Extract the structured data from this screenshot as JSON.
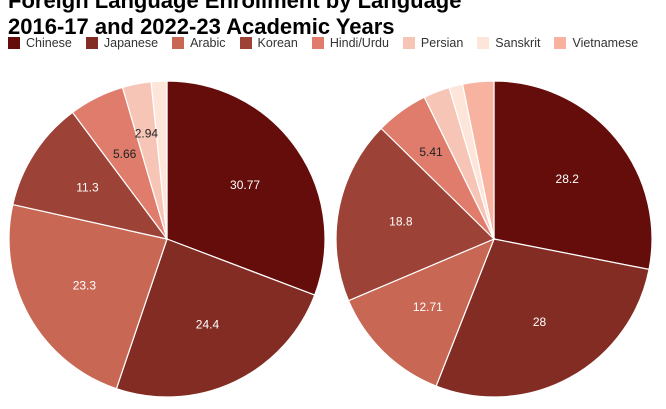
{
  "title_lines": [
    "Foreign Language Enrollment by Language",
    "2016-17 and 2022-23 Academic Years"
  ],
  "legend": [
    {
      "label": "Chinese",
      "color": "#650d0a"
    },
    {
      "label": "Japanese",
      "color": "#832c23"
    },
    {
      "label": "Arabic",
      "color": "#c96755"
    },
    {
      "label": "Korean",
      "color": "#9c4236"
    },
    {
      "label": "Hindi/Urdu",
      "color": "#e07c6c"
    },
    {
      "label": "Persian",
      "color": "#f6c5b6"
    },
    {
      "label": "Sanskrit",
      "color": "#fde6d9"
    },
    {
      "label": "Vietnamese",
      "color": "#f7b2a0"
    }
  ],
  "chart_data": [
    {
      "type": "pie",
      "categories": [
        "Chinese",
        "Japanese",
        "Arabic",
        "Korean",
        "Hindi/Urdu",
        "Persian",
        "Sanskrit",
        "Vietnamese"
      ],
      "values": [
        30.77,
        24.4,
        23.3,
        11.3,
        5.66,
        2.94,
        1.6,
        0
      ],
      "data_labels": [
        "30.77",
        "24.4",
        "23.3",
        "11.3",
        "5.66",
        "2.94",
        "",
        ""
      ]
    },
    {
      "type": "pie",
      "categories": [
        "Chinese",
        "Japanese",
        "Arabic",
        "Korean",
        "Hindi/Urdu",
        "Persian",
        "Sanskrit",
        "Vietnamese"
      ],
      "values": [
        28.2,
        28,
        12.71,
        18.8,
        5.41,
        2.7,
        1.4,
        3.2
      ],
      "data_labels": [
        "28.2",
        "28",
        "12.71",
        "18.8",
        "5.41",
        "",
        "",
        ""
      ]
    }
  ]
}
